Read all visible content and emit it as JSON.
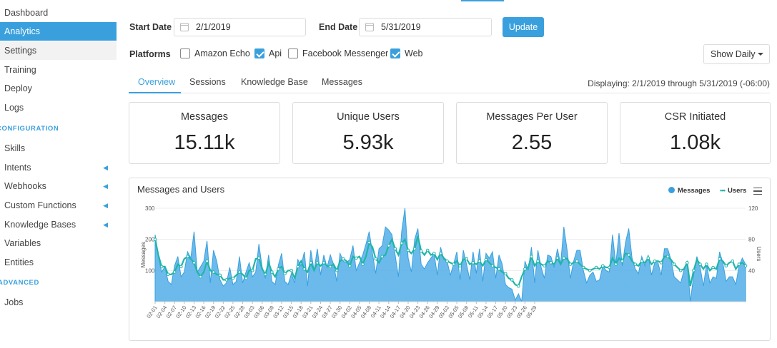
{
  "sidebar": {
    "items_top": [
      "Dashboard",
      "Analytics",
      "Settings",
      "Training",
      "Deploy",
      "Logs"
    ],
    "section_configuration": "CONFIGURATION",
    "items_config": [
      "Skills",
      "Intents",
      "Webhooks",
      "Custom Functions",
      "Knowledge Bases",
      "Variables",
      "Entities"
    ],
    "section_advanced": "ADVANCED",
    "items_advanced": [
      "Jobs"
    ],
    "active": "Analytics"
  },
  "filters": {
    "start_label": "Start Date",
    "start_value": "2/1/2019",
    "end_label": "End Date",
    "end_value": "5/31/2019",
    "update_label": "Update",
    "platforms_label": "Platforms",
    "platforms": [
      {
        "label": "Amazon Echo",
        "checked": false
      },
      {
        "label": "Api",
        "checked": true
      },
      {
        "label": "Facebook Messenger",
        "checked": false
      },
      {
        "label": "Web",
        "checked": true
      }
    ],
    "granularity": "Show Daily"
  },
  "tabs": [
    "Overview",
    "Sessions",
    "Knowledge Base",
    "Messages"
  ],
  "active_tab": "Overview",
  "display_range": "Displaying: 2/1/2019 through 5/31/2019 (-06:00)",
  "metrics": [
    {
      "title": "Messages",
      "value": "15.11k"
    },
    {
      "title": "Unique Users",
      "value": "5.93k"
    },
    {
      "title": "Messages Per User",
      "value": "2.55"
    },
    {
      "title": "CSR Initiated",
      "value": "1.08k"
    }
  ],
  "chart_title": "Messages and Users",
  "colors": {
    "accent": "#3aa0dd",
    "messages_fill": "#5cb3ea",
    "users_line": "#1fb5a9"
  },
  "chart_data": {
    "type": "area",
    "title": "Messages and Users",
    "series": [
      {
        "name": "Messages",
        "axis": "left",
        "type": "area",
        "values": [
          215,
          148,
          95,
          112,
          65,
          55,
          115,
          145,
          80,
          95,
          160,
          140,
          225,
          95,
          112,
          130,
          195,
          60,
          165,
          130,
          70,
          50,
          60,
          110,
          55,
          65,
          145,
          60,
          95,
          125,
          80,
          95,
          185,
          110,
          75,
          150,
          65,
          55,
          118,
          155,
          65,
          55,
          90,
          60,
          135,
          115,
          160,
          50,
          165,
          100,
          170,
          85,
          150,
          110,
          150,
          120,
          65,
          155,
          130,
          125,
          135,
          180,
          100,
          125,
          150,
          185,
          225,
          155,
          90,
          170,
          180,
          240,
          230,
          215,
          150,
          80,
          225,
          300,
          140,
          95,
          200,
          235,
          120,
          105,
          125,
          140,
          155,
          85,
          175,
          135,
          130,
          85,
          120,
          160,
          70,
          165,
          120,
          70,
          160,
          90,
          170,
          65,
          155,
          140,
          160,
          75,
          150,
          120,
          55,
          45,
          40,
          5,
          25,
          0,
          130,
          100,
          175,
          60,
          165,
          110,
          75,
          150,
          145,
          110,
          170,
          120,
          240,
          165,
          75,
          130,
          165,
          165,
          100,
          60,
          85,
          95,
          65,
          70,
          115,
          100,
          95,
          215,
          120,
          220,
          115,
          190,
          235,
          140,
          105,
          90,
          145,
          115,
          150,
          85,
          125,
          125,
          85,
          170,
          170,
          135,
          80,
          70,
          60,
          100,
          130,
          0,
          85,
          145,
          110,
          50,
          120,
          60,
          80,
          75,
          160,
          125,
          65,
          80,
          80,
          55,
          115,
          140,
          120
        ]
      },
      {
        "name": "Users",
        "axis": "right",
        "type": "line",
        "values": [
          80,
          60,
          45,
          45,
          35,
          35,
          38,
          48,
          45,
          55,
          58,
          55,
          50,
          38,
          32,
          38,
          52,
          40,
          38,
          35,
          34,
          28,
          28,
          30,
          30,
          34,
          38,
          35,
          30,
          40,
          40,
          55,
          56,
          42,
          35,
          50,
          38,
          32,
          42,
          45,
          36,
          40,
          40,
          30,
          45,
          52,
          42,
          38,
          50,
          40,
          50,
          46,
          50,
          46,
          45,
          48,
          40,
          52,
          55,
          52,
          46,
          58,
          56,
          58,
          48,
          58,
          76,
          70,
          55,
          50,
          58,
          60,
          72,
          80,
          68,
          60,
          75,
          80,
          66,
          62,
          68,
          84,
          65,
          60,
          66,
          60,
          62,
          54,
          62,
          56,
          52,
          50,
          48,
          52,
          46,
          54,
          55,
          48,
          50,
          48,
          52,
          46,
          54,
          50,
          46,
          44,
          42,
          38,
          36,
          30,
          28,
          22,
          20,
          32,
          42,
          44,
          58,
          46,
          52,
          48,
          46,
          52,
          50,
          48,
          56,
          48,
          56,
          55,
          48,
          50,
          52,
          48,
          44,
          42,
          40,
          42,
          44,
          42,
          46,
          44,
          44,
          56,
          48,
          56,
          52,
          62,
          60,
          52,
          48,
          46,
          52,
          50,
          56,
          48,
          52,
          52,
          50,
          58,
          58,
          54,
          48,
          44,
          40,
          42,
          50,
          20,
          40,
          54,
          48,
          42,
          48,
          40,
          44,
          42,
          55,
          52,
          46,
          50,
          52,
          42,
          48,
          50,
          46
        ]
      }
    ],
    "x_tick_labels": [
      "02-01",
      "02-04",
      "02-07",
      "02-10",
      "02-13",
      "02-16",
      "02-19",
      "02-22",
      "02-25",
      "02-28",
      "03-03",
      "03-06",
      "03-09",
      "03-12",
      "03-15",
      "03-18",
      "03-21",
      "03-24",
      "03-27",
      "03-30",
      "04-02",
      "04-05",
      "04-08",
      "04-11",
      "04-14",
      "04-17",
      "04-20",
      "04-23",
      "04-26",
      "04-29",
      "05-02",
      "05-05",
      "05-08",
      "05-11",
      "05-14",
      "05-17",
      "05-20",
      "05-23",
      "05-26",
      "05-29"
    ],
    "y_left": {
      "label": "Messages",
      "ticks": [
        "100",
        "200",
        "300"
      ],
      "range": [
        0,
        300
      ]
    },
    "y_right": {
      "label": "Users",
      "ticks": [
        "40",
        "80",
        "120"
      ],
      "range": [
        0,
        120
      ]
    },
    "legend_position": "top-right"
  }
}
